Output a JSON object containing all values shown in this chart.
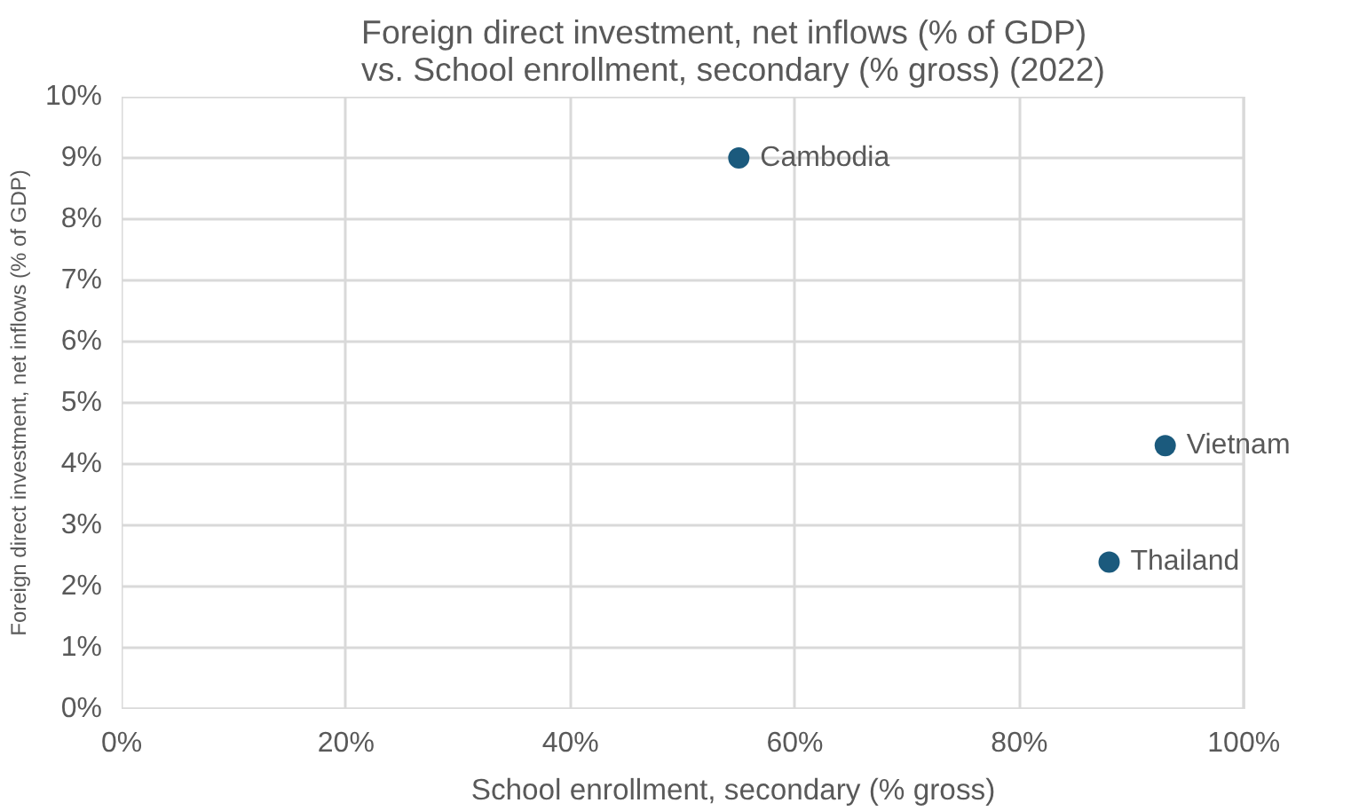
{
  "chart_data": {
    "type": "scatter",
    "title": "Foreign direct investment, net inflows (% of GDP) vs. School enrollment, secondary (% gross) (2022)",
    "xlabel": "School enrollment, secondary (% gross)",
    "ylabel": "Foreign direct investment, net inflows (% of GDP)",
    "series": [
      {
        "color": "#1b5a7d",
        "x": [
          55,
          93,
          88
        ],
        "values": [
          9.0,
          4.3,
          2.4
        ]
      }
    ],
    "annotations": [
      {
        "text": "Cambodia",
        "x": 55,
        "y": 9.0
      },
      {
        "text": "Vietnam",
        "x": 93,
        "y": 4.3
      },
      {
        "text": "Thailand",
        "x": 88,
        "y": 2.4
      }
    ],
    "xlim": [
      0,
      100
    ],
    "ylim": [
      0,
      10
    ],
    "xticks": [
      {
        "value": 0,
        "label": "0%"
      },
      {
        "value": 20,
        "label": "20%"
      },
      {
        "value": 40,
        "label": "40%"
      },
      {
        "value": 60,
        "label": "60%"
      },
      {
        "value": 80,
        "label": "80%"
      },
      {
        "value": 100,
        "label": "100%"
      }
    ],
    "yticks": [
      {
        "value": 0,
        "label": "0%"
      },
      {
        "value": 1,
        "label": "1%"
      },
      {
        "value": 2,
        "label": "2%"
      },
      {
        "value": 3,
        "label": "3%"
      },
      {
        "value": 4,
        "label": "4%"
      },
      {
        "value": 5,
        "label": "5%"
      },
      {
        "value": 6,
        "label": "6%"
      },
      {
        "value": 7,
        "label": "7%"
      },
      {
        "value": 8,
        "label": "8%"
      },
      {
        "value": 9,
        "label": "9%"
      },
      {
        "value": 10,
        "label": "10%"
      }
    ],
    "grid": true,
    "marker": "circle"
  }
}
